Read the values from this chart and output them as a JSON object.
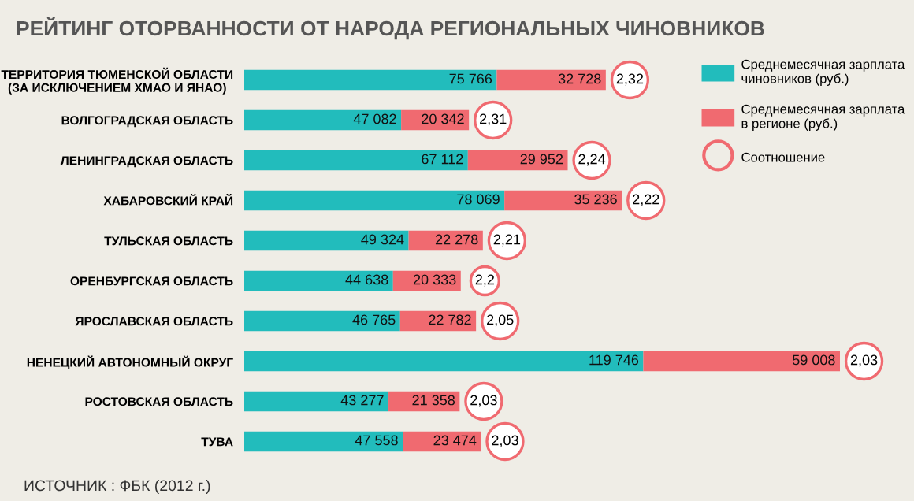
{
  "chart_data": {
    "type": "bar",
    "orientation": "horizontal",
    "stacked": true,
    "data_labels": true,
    "legend": "top right",
    "grid": false,
    "title": "РЕЙТИНГ ОТОРВАННОСТИ ОТ НАРОДА РЕГИОНАЛЬНЫХ ЧИНОВНИКОВ",
    "categories": [
      "ТЕРРИТОРИЯ ТЮМЕНСКОЙ ОБЛАСТИ\n(ЗА ИСКЛЮЧЕНИЕМ ХМАО И ЯНАО)",
      "ВОЛГОГРАДСКАЯ ОБЛАСТЬ",
      "ЛЕНИНГРАДСКАЯ ОБЛАСТЬ",
      "ХАБАРОВСКИЙ КРАЙ",
      "ТУЛЬСКАЯ ОБЛАСТЬ",
      "ОРЕНБУРГСКАЯ ОБЛАСТЬ",
      "ЯРОСЛАВСКАЯ ОБЛАСТЬ",
      "НЕНЕЦКИЙ АВТОНОМНЫЙ ОКРУГ",
      "РОСТОВСКАЯ ОБЛАСТЬ",
      "ТУВА"
    ],
    "series": [
      {
        "name": "Среднемесячная зарплата\nчиновников (руб.)",
        "color": "#22bcbc",
        "values": [
          75766,
          47082,
          67112,
          78069,
          49324,
          44638,
          46765,
          119746,
          43277,
          47558
        ],
        "value_labels": [
          "75 766",
          "47 082",
          "67 112",
          "78 069",
          "49 324",
          "44 638",
          "46 765",
          "119 746",
          "43 277",
          "47 558"
        ]
      },
      {
        "name": "Среднемесячная зарплата\nв регионе (руб.)",
        "color": "#f06a70",
        "values": [
          32728,
          20342,
          29952,
          35236,
          22278,
          20333,
          22782,
          59008,
          21358,
          23474
        ],
        "value_labels": [
          "32 728",
          "20 342",
          "29 952",
          "35 236",
          "22 278",
          "20 333",
          "22 782",
          "59 008",
          "21 358",
          "23 474"
        ]
      }
    ],
    "annotations": [
      "ИСТОЧНИК : ФБК (2012 г.)",
      "Соотношение",
      {
        "text": "2,32",
        "x": 108494,
        "y": "ТЕРРИТОРИЯ ТЮМЕНСКОЙ ОБЛАСТИ\n(ЗА ИСКЛЮЧЕНИЕМ ХМАО И ЯНАО)"
      },
      {
        "text": "2,31",
        "x": 67424,
        "y": "ВОЛГОГРАДСКАЯ ОБЛАСТЬ"
      },
      {
        "text": "2,24",
        "x": 97064,
        "y": "ЛЕНИНГРАДСКАЯ ОБЛАСТЬ"
      },
      {
        "text": "2,22",
        "x": 113305,
        "y": "ХАБАРОВСКИЙ КРАЙ"
      },
      {
        "text": "2,21",
        "x": 71602,
        "y": "ТУЛЬСКАЯ ОБЛАСТЬ"
      },
      {
        "text": "2,2",
        "x": 64971,
        "y": "ОРЕНБУРГСКАЯ ОБЛАСТЬ"
      },
      {
        "text": "2,05",
        "x": 69547,
        "y": "ЯРОСЛАВСКАЯ ОБЛАСТЬ"
      },
      {
        "text": "2,03",
        "x": 178754,
        "y": "НЕНЕЦКИЙ АВТОНОМНЫЙ ОКРУГ"
      },
      {
        "text": "2,03",
        "x": 64635,
        "y": "РОСТОВСКАЯ ОБЛАСТЬ"
      },
      {
        "text": "2,03",
        "x": 71032,
        "y": "ТУВА"
      }
    ]
  }
}
